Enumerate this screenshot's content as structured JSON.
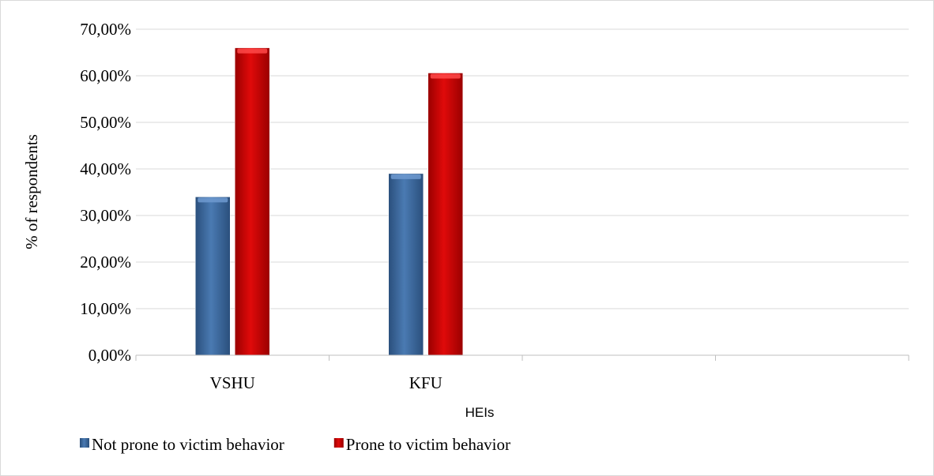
{
  "chart_data": {
    "type": "bar",
    "title": "",
    "xlabel": "HEIs",
    "ylabel": "% of respondents",
    "categories": [
      "VSHU",
      "KFU",
      "",
      ""
    ],
    "series": [
      {
        "name": "Not prone to victim behavior",
        "values": [
          34.0,
          39.0,
          null,
          null
        ],
        "color": "#3b679a"
      },
      {
        "name": "Prone to victim behavior",
        "values": [
          66.0,
          60.6,
          null,
          null
        ],
        "color": "#c00000"
      }
    ],
    "ylim": [
      0,
      70
    ],
    "yticks": [
      0,
      10,
      20,
      30,
      40,
      50,
      60,
      70
    ],
    "ytick_labels": [
      "0,00%",
      "10,00%",
      "20,00%",
      "30,00%",
      "40,00%",
      "50,00%",
      "60,00%",
      "70,00%"
    ],
    "grid": true,
    "legend_position": "bottom-left"
  }
}
